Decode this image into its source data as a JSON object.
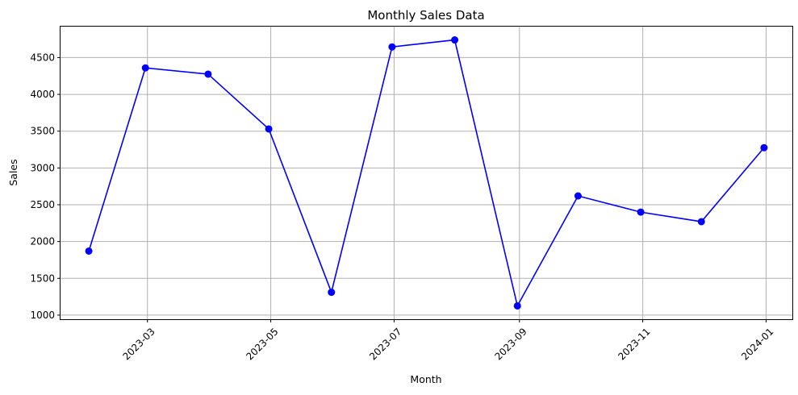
{
  "chart_data": {
    "type": "line",
    "title": "Monthly Sales Data",
    "xlabel": "Month",
    "ylabel": "Sales",
    "x": [
      "2023-01-31",
      "2023-02-28",
      "2023-03-31",
      "2023-04-30",
      "2023-05-31",
      "2023-06-30",
      "2023-07-31",
      "2023-08-31",
      "2023-09-30",
      "2023-10-31",
      "2023-11-30",
      "2023-12-31"
    ],
    "series": [
      {
        "values": [
          1870,
          4360,
          4275,
          3530,
          1310,
          4645,
          4740,
          1125,
          2620,
          2400,
          2270,
          3275
        ],
        "color": "#0000ff",
        "marker": "circle"
      }
    ],
    "xticks": [
      "2023-03-01",
      "2023-05-01",
      "2023-07-01",
      "2023-09-01",
      "2023-11-01",
      "2024-01-01"
    ],
    "xtick_labels": [
      "2023-03",
      "2023-05",
      "2023-07",
      "2023-09",
      "2023-11",
      "2024-01"
    ],
    "xtick_rotation": 45,
    "yticks": [
      1000,
      1500,
      2000,
      2500,
      3000,
      3500,
      4000,
      4500
    ],
    "xlim": [
      "2023-01-17",
      "2024-01-14"
    ],
    "ylim": [
      944,
      4921
    ],
    "grid": true
  }
}
